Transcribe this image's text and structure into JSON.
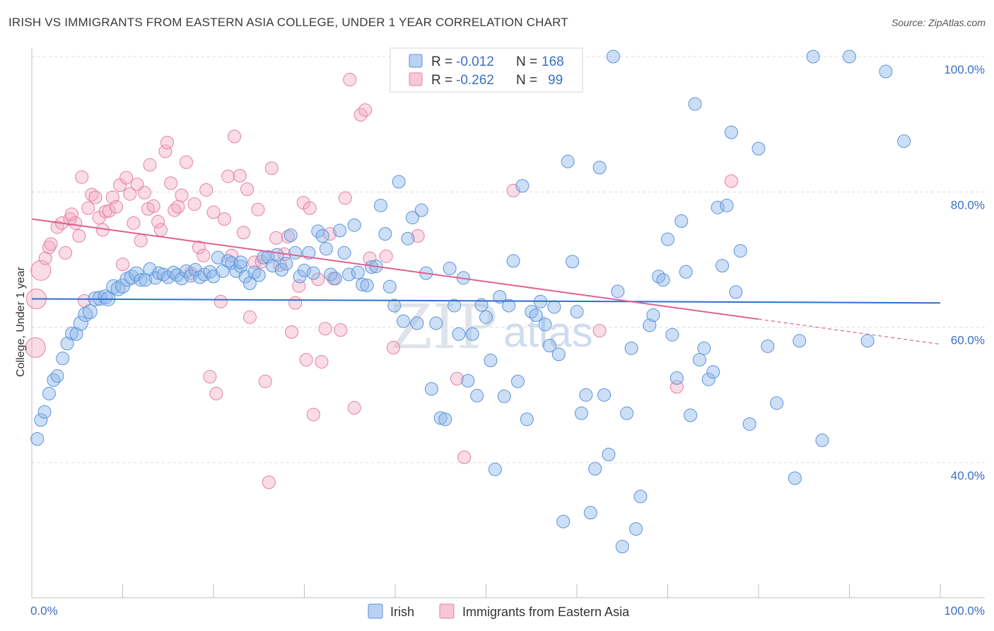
{
  "header": {
    "title": "IRISH VS IMMIGRANTS FROM EASTERN ASIA COLLEGE, UNDER 1 YEAR CORRELATION CHART",
    "source": "Source: ZipAtlas.com"
  },
  "watermark": {
    "zip": "ZIP",
    "atlas": "atlas"
  },
  "legend": {
    "rows": [
      {
        "r_label": "R =",
        "r_value": "-0.012",
        "n_label": "N =",
        "n_value": "168",
        "color": "#8fb8ea"
      },
      {
        "r_label": "R =",
        "r_value": "-0.262",
        "n_label": "N =",
        "n_value": "99",
        "color": "#f2a7c0"
      }
    ]
  },
  "bottom_legend": {
    "irish": "Irish",
    "immigrants": "Immigrants from Eastern Asia"
  },
  "chart_data": {
    "type": "scatter",
    "title": "IRISH VS IMMIGRANTS FROM EASTERN ASIA COLLEGE, UNDER 1 YEAR CORRELATION CHART",
    "xlabel": "",
    "ylabel": "College, Under 1 year",
    "xlim": [
      0,
      100
    ],
    "ylim": [
      20,
      100
    ],
    "x_tick_labels": [
      "0.0%",
      "100.0%"
    ],
    "y_tick_labels": [
      {
        "value": 40,
        "label": "40.0%"
      },
      {
        "value": 60,
        "label": "60.0%"
      },
      {
        "value": 80,
        "label": "80.0%"
      },
      {
        "value": 100,
        "label": "100.0%"
      }
    ],
    "grid": true,
    "series": [
      {
        "name": "Irish",
        "color": "#8fb8ea",
        "stroke": "#5b93d9",
        "trend": {
          "x": [
            0,
            100
          ],
          "y": [
            64.2,
            63.6
          ],
          "color": "#2f6fd0"
        },
        "points": [
          [
            0.6,
            43.5
          ],
          [
            1.0,
            46.3
          ],
          [
            1.4,
            47.5
          ],
          [
            1.9,
            50.2
          ],
          [
            2.4,
            52.2
          ],
          [
            2.8,
            52.8
          ],
          [
            3.4,
            55.4
          ],
          [
            3.9,
            57.6
          ],
          [
            4.4,
            59.1
          ],
          [
            4.9,
            59.0
          ],
          [
            5.4,
            60.6
          ],
          [
            5.9,
            61.9
          ],
          [
            6.4,
            62.3
          ],
          [
            7.0,
            64.2
          ],
          [
            7.5,
            64.3
          ],
          [
            8.1,
            64.5
          ],
          [
            8.4,
            64.2
          ],
          [
            9.0,
            66.0
          ],
          [
            9.5,
            65.7
          ],
          [
            10.0,
            66.1
          ],
          [
            10.5,
            67.1
          ],
          [
            11.0,
            67.4
          ],
          [
            11.5,
            67.9
          ],
          [
            12.0,
            67.0
          ],
          [
            12.5,
            67.0
          ],
          [
            13.0,
            68.6
          ],
          [
            13.6,
            67.3
          ],
          [
            14.0,
            68.0
          ],
          [
            14.5,
            67.8
          ],
          [
            15.0,
            67.4
          ],
          [
            15.6,
            68.1
          ],
          [
            16.0,
            67.7
          ],
          [
            16.5,
            67.2
          ],
          [
            17.0,
            68.3
          ],
          [
            17.5,
            67.6
          ],
          [
            18.0,
            68.5
          ],
          [
            18.5,
            67.4
          ],
          [
            19.0,
            67.8
          ],
          [
            19.6,
            68.2
          ],
          [
            20.0,
            67.5
          ],
          [
            20.5,
            70.3
          ],
          [
            21.0,
            68.3
          ],
          [
            21.6,
            69.8
          ],
          [
            22.0,
            69.5
          ],
          [
            22.5,
            68.3
          ],
          [
            23.0,
            69.0
          ],
          [
            23.5,
            67.5
          ],
          [
            24.0,
            66.5
          ],
          [
            24.5,
            68.1
          ],
          [
            25.0,
            67.7
          ],
          [
            25.5,
            70.3
          ],
          [
            26.0,
            70.4
          ],
          [
            26.5,
            69.1
          ],
          [
            27.0,
            70.7
          ],
          [
            27.5,
            68.5
          ],
          [
            28.0,
            69.4
          ],
          [
            28.5,
            73.6
          ],
          [
            29.0,
            71.0
          ],
          [
            29.5,
            67.5
          ],
          [
            30.0,
            68.4
          ],
          [
            30.5,
            71.0
          ],
          [
            31.0,
            68.0
          ],
          [
            31.5,
            74.2
          ],
          [
            32.0,
            73.5
          ],
          [
            32.4,
            71.6
          ],
          [
            32.9,
            67.8
          ],
          [
            33.4,
            67.2
          ],
          [
            33.9,
            74.3
          ],
          [
            34.4,
            71.0
          ],
          [
            34.9,
            67.8
          ],
          [
            35.5,
            75.1
          ],
          [
            35.9,
            68.1
          ],
          [
            36.4,
            66.3
          ],
          [
            36.9,
            66.2
          ],
          [
            37.4,
            68.9
          ],
          [
            37.9,
            69.0
          ],
          [
            38.4,
            78.0
          ],
          [
            38.9,
            73.8
          ],
          [
            39.4,
            66.0
          ],
          [
            39.9,
            63.2
          ],
          [
            40.4,
            81.5
          ],
          [
            40.9,
            60.9
          ],
          [
            41.4,
            73.1
          ],
          [
            41.9,
            76.2
          ],
          [
            42.4,
            60.6
          ],
          [
            42.9,
            77.3
          ],
          [
            43.4,
            68.0
          ],
          [
            44.0,
            50.9
          ],
          [
            44.5,
            60.6
          ],
          [
            45.0,
            46.6
          ],
          [
            45.5,
            46.4
          ],
          [
            46.0,
            68.7
          ],
          [
            46.5,
            63.2
          ],
          [
            47.0,
            59.0
          ],
          [
            47.5,
            67.3
          ],
          [
            48.0,
            52.1
          ],
          [
            48.5,
            59.0
          ],
          [
            49.0,
            49.9
          ],
          [
            49.5,
            63.3
          ],
          [
            50.0,
            61.5
          ],
          [
            50.5,
            55.1
          ],
          [
            51.0,
            39.0
          ],
          [
            51.5,
            64.5
          ],
          [
            52.0,
            49.8
          ],
          [
            52.5,
            63.2
          ],
          [
            53.0,
            69.8
          ],
          [
            53.5,
            52.0
          ],
          [
            54.0,
            80.9
          ],
          [
            54.5,
            46.4
          ],
          [
            55.0,
            62.3
          ],
          [
            55.5,
            61.8
          ],
          [
            56.0,
            63.8
          ],
          [
            56.5,
            60.4
          ],
          [
            57.0,
            57.3
          ],
          [
            57.5,
            63.0
          ],
          [
            58.0,
            56.0
          ],
          [
            58.5,
            31.3
          ],
          [
            59.0,
            84.5
          ],
          [
            59.5,
            69.7
          ],
          [
            60.0,
            62.3
          ],
          [
            60.5,
            47.3
          ],
          [
            61.0,
            50.0
          ],
          [
            61.5,
            32.6
          ],
          [
            62.0,
            39.1
          ],
          [
            62.5,
            83.6
          ],
          [
            63.0,
            50.0
          ],
          [
            63.5,
            41.2
          ],
          [
            64.0,
            100.0
          ],
          [
            64.5,
            65.3
          ],
          [
            65.0,
            27.6
          ],
          [
            65.5,
            47.3
          ],
          [
            66.0,
            56.9
          ],
          [
            66.5,
            30.2
          ],
          [
            67.0,
            35.0
          ],
          [
            68.0,
            60.3
          ],
          [
            68.4,
            61.8
          ],
          [
            69.0,
            67.5
          ],
          [
            69.5,
            67.0
          ],
          [
            70.0,
            73.0
          ],
          [
            70.5,
            58.9
          ],
          [
            71.0,
            52.5
          ],
          [
            71.5,
            75.7
          ],
          [
            72.0,
            68.2
          ],
          [
            72.5,
            47.0
          ],
          [
            73.0,
            93.0
          ],
          [
            73.5,
            55.2
          ],
          [
            74.0,
            56.9
          ],
          [
            74.5,
            52.3
          ],
          [
            75.0,
            53.4
          ],
          [
            75.5,
            77.7
          ],
          [
            76.0,
            69.1
          ],
          [
            76.5,
            78.0
          ],
          [
            77.0,
            88.8
          ],
          [
            77.5,
            65.2
          ],
          [
            78.0,
            71.3
          ],
          [
            79.0,
            45.7
          ],
          [
            80.0,
            86.4
          ],
          [
            81.0,
            57.2
          ],
          [
            82.0,
            48.8
          ],
          [
            84.0,
            37.7
          ],
          [
            84.5,
            58.0
          ],
          [
            86.0,
            100.0
          ],
          [
            87.0,
            43.3
          ],
          [
            90.0,
            100.0
          ],
          [
            92.0,
            58.0
          ],
          [
            94.0,
            97.8
          ],
          [
            96.0,
            87.5
          ],
          [
            23.0,
            69.6
          ]
        ]
      },
      {
        "name": "Immigrants from Eastern Asia",
        "color": "#f2a7c0",
        "stroke": "#e57fa3",
        "trend": {
          "x": [
            0,
            80
          ],
          "y": [
            76.0,
            61.2
          ],
          "dash_to": [
            100,
            57.5
          ],
          "color": "#e0608f"
        },
        "points": [
          [
            0.4,
            57.0
          ],
          [
            0.5,
            64.2
          ],
          [
            1.0,
            68.4
          ],
          [
            1.5,
            70.2
          ],
          [
            1.9,
            71.8
          ],
          [
            2.1,
            72.3
          ],
          [
            2.8,
            74.8
          ],
          [
            3.3,
            75.4
          ],
          [
            3.7,
            71.0
          ],
          [
            4.2,
            76.0
          ],
          [
            4.4,
            76.7
          ],
          [
            4.8,
            75.4
          ],
          [
            5.2,
            73.5
          ],
          [
            5.5,
            82.2
          ],
          [
            5.8,
            63.9
          ],
          [
            6.2,
            77.6
          ],
          [
            6.6,
            79.6
          ],
          [
            7.0,
            79.2
          ],
          [
            7.4,
            76.2
          ],
          [
            7.8,
            74.4
          ],
          [
            8.1,
            77.1
          ],
          [
            8.5,
            77.2
          ],
          [
            8.9,
            79.2
          ],
          [
            9.3,
            77.8
          ],
          [
            9.7,
            81.0
          ],
          [
            10.0,
            69.3
          ],
          [
            10.4,
            82.1
          ],
          [
            10.8,
            79.7
          ],
          [
            11.2,
            75.4
          ],
          [
            11.6,
            81.1
          ],
          [
            12.0,
            72.8
          ],
          [
            12.4,
            79.9
          ],
          [
            12.8,
            77.5
          ],
          [
            13.0,
            84.0
          ],
          [
            13.4,
            77.9
          ],
          [
            13.9,
            75.6
          ],
          [
            14.2,
            74.4
          ],
          [
            14.7,
            86.0
          ],
          [
            14.9,
            87.3
          ],
          [
            15.3,
            81.3
          ],
          [
            15.7,
            77.3
          ],
          [
            16.1,
            77.8
          ],
          [
            16.5,
            79.5
          ],
          [
            17.0,
            84.4
          ],
          [
            17.5,
            68.0
          ],
          [
            17.9,
            78.2
          ],
          [
            18.4,
            71.8
          ],
          [
            18.9,
            70.6
          ],
          [
            19.2,
            80.3
          ],
          [
            19.6,
            52.7
          ],
          [
            20.0,
            77.0
          ],
          [
            20.3,
            50.2
          ],
          [
            20.8,
            63.8
          ],
          [
            21.2,
            76.0
          ],
          [
            21.6,
            82.3
          ],
          [
            22.0,
            70.6
          ],
          [
            22.3,
            88.2
          ],
          [
            22.9,
            82.4
          ],
          [
            23.3,
            74.0
          ],
          [
            23.7,
            80.4
          ],
          [
            24.0,
            61.5
          ],
          [
            24.5,
            69.6
          ],
          [
            24.9,
            77.4
          ],
          [
            25.3,
            69.7
          ],
          [
            25.7,
            52.0
          ],
          [
            26.1,
            37.1
          ],
          [
            26.4,
            83.5
          ],
          [
            26.9,
            73.2
          ],
          [
            27.3,
            69.2
          ],
          [
            27.8,
            70.8
          ],
          [
            28.2,
            73.4
          ],
          [
            28.6,
            59.3
          ],
          [
            29.0,
            63.6
          ],
          [
            29.4,
            66.1
          ],
          [
            29.9,
            78.4
          ],
          [
            30.2,
            55.2
          ],
          [
            30.6,
            77.6
          ],
          [
            31.0,
            47.1
          ],
          [
            31.5,
            67.1
          ],
          [
            31.9,
            54.9
          ],
          [
            32.3,
            59.8
          ],
          [
            32.8,
            73.8
          ],
          [
            33.2,
            67.2
          ],
          [
            34.0,
            59.6
          ],
          [
            34.5,
            79.1
          ],
          [
            35.0,
            96.6
          ],
          [
            35.5,
            48.1
          ],
          [
            36.2,
            91.4
          ],
          [
            36.7,
            92.1
          ],
          [
            37.2,
            70.2
          ],
          [
            39.8,
            57.0
          ],
          [
            42.5,
            73.5
          ],
          [
            46.8,
            52.4
          ],
          [
            47.6,
            40.8
          ],
          [
            53.0,
            80.2
          ],
          [
            62.5,
            59.5
          ],
          [
            71.0,
            51.2
          ],
          [
            77.0,
            81.6
          ],
          [
            39.0,
            70.5
          ]
        ]
      }
    ]
  }
}
